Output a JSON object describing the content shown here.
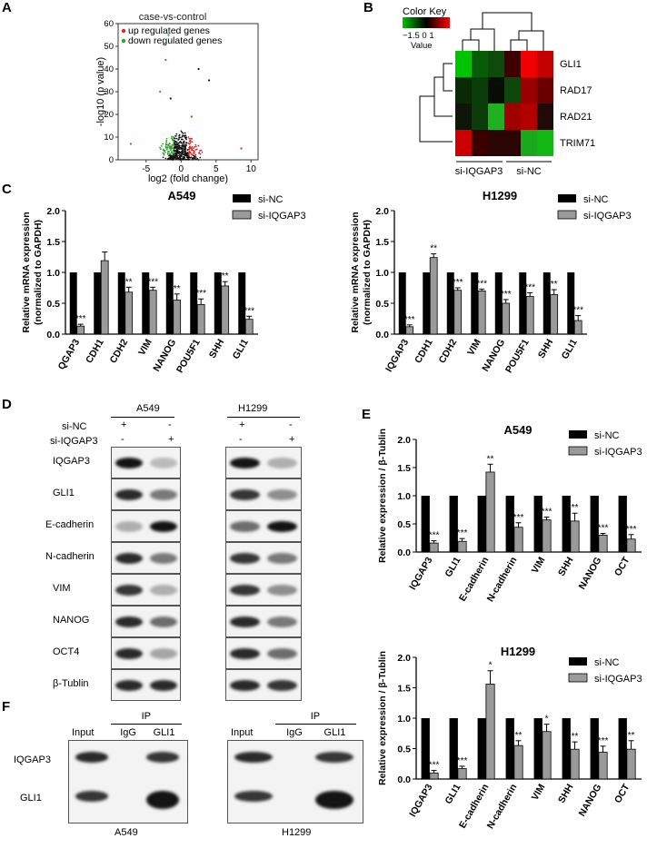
{
  "panel_labels": {
    "a": "A",
    "b": "B",
    "c": "C",
    "d": "D",
    "e": "E",
    "f": "F"
  },
  "volcano": {
    "title": "case-vs-control",
    "legend_up": "up regulated genes",
    "legend_down": "down regulated genes",
    "xlabel": "log2 (fold change)",
    "ylabel": "-log10 (p value)",
    "xticks": [
      "-5",
      "0",
      "5",
      "10"
    ],
    "yticks": [
      "0",
      "10",
      "20",
      "30",
      "40",
      "50",
      "60"
    ],
    "up_color": "#d62728",
    "down_color": "#2ca02c"
  },
  "heatmap": {
    "color_key_title": "Color Key",
    "color_key_ticks": "−1.5 0 1",
    "color_key_value": "Value",
    "genes": [
      "GLI1",
      "RAD17",
      "RAD21",
      "TRIM71"
    ],
    "groups": [
      "si-IQGAP3",
      "si-NC"
    ]
  },
  "chart_c_a549": {
    "title": "A549",
    "ylabel_line1": "Relative mRNA expression",
    "ylabel_line2": "(normalized to GAPDH)",
    "legend": [
      "si-NC",
      "si-IQGAP3"
    ],
    "yticks": [
      "0.0",
      "0.5",
      "1.0",
      "1.5",
      "2.0"
    ],
    "categories": [
      "QGAP3",
      "CDH1",
      "CDH2",
      "VIM",
      "NANOG",
      "POU5F1",
      "SHH",
      "GLI1"
    ],
    "sig": [
      "***",
      "",
      "**",
      "***",
      "**",
      "***",
      "**",
      "***"
    ]
  },
  "chart_c_h1299": {
    "title": "H1299",
    "ylabel_line1": "Relative mRNA expression",
    "ylabel_line2": "(normalized to GAPDH)",
    "legend": [
      "si-NC",
      "si-IQGAP3"
    ],
    "yticks": [
      "0.0",
      "0.5",
      "1.0",
      "1.5",
      "2.0"
    ],
    "categories": [
      "IQGAP3",
      "CDH1",
      "CDH2",
      "VIM",
      "NANOG",
      "POU5F1",
      "SHH",
      "GLI1"
    ],
    "sig": [
      "***",
      "**",
      "***",
      "***",
      "***",
      "***",
      "**",
      "***"
    ]
  },
  "chart_e_a549": {
    "title": "A549",
    "ylabel": "Relative expression / β-Tublin",
    "legend": [
      "si-NC",
      "si-IQGAP3"
    ],
    "yticks": [
      "0.0",
      "0.5",
      "1.0",
      "1.5",
      "2.0"
    ],
    "categories": [
      "IQGAP3",
      "GLI1",
      "E-cadherin",
      "N-cadherin",
      "VIM",
      "SHH",
      "NANOG",
      "OCT"
    ],
    "sig": [
      "***",
      "***",
      "**",
      "***",
      "***",
      "**",
      "***",
      "***"
    ]
  },
  "chart_e_h1299": {
    "title": "H1299",
    "ylabel": "Relative expression / β-Tublin",
    "legend": [
      "si-NC",
      "si-IQGAP3"
    ],
    "yticks": [
      "0.0",
      "0.5",
      "1.0",
      "1.5",
      "2.0"
    ],
    "categories": [
      "IQGAP3",
      "GLI1",
      "E-cadherin",
      "N-cadherin",
      "VIM",
      "SHH",
      "NANOG",
      "OCT"
    ],
    "sig": [
      "***",
      "***",
      "*",
      "**",
      "*",
      "**",
      "***",
      "**"
    ]
  },
  "chart_data": [
    {
      "type": "bar",
      "title": "A549",
      "ylabel": "Relative mRNA expression (normalized to GAPDH)",
      "ylim": [
        0,
        2.0
      ],
      "categories": [
        "QGAP3",
        "CDH1",
        "CDH2",
        "VIM",
        "NANOG",
        "POU5F1",
        "SHH",
        "GLI1"
      ],
      "series": [
        {
          "name": "si-NC",
          "values": [
            1,
            1,
            1,
            1,
            1,
            1,
            1,
            1
          ]
        },
        {
          "name": "si-IQGAP3",
          "values": [
            0.13,
            1.19,
            0.68,
            0.71,
            0.55,
            0.48,
            0.78,
            0.24
          ],
          "errors": [
            0.03,
            0.14,
            0.08,
            0.05,
            0.1,
            0.09,
            0.07,
            0.05
          ]
        }
      ]
    },
    {
      "type": "bar",
      "title": "H1299",
      "ylabel": "Relative mRNA expression (normalized to GAPDH)",
      "ylim": [
        0,
        2.0
      ],
      "categories": [
        "IQGAP3",
        "CDH1",
        "CDH2",
        "VIM",
        "NANOG",
        "POU5F1",
        "SHH",
        "GLI1"
      ],
      "series": [
        {
          "name": "si-NC",
          "values": [
            1,
            1,
            1,
            1,
            1,
            1,
            1,
            1
          ]
        },
        {
          "name": "si-IQGAP3",
          "values": [
            0.12,
            1.24,
            0.71,
            0.7,
            0.5,
            0.61,
            0.64,
            0.22
          ],
          "errors": [
            0.03,
            0.06,
            0.04,
            0.03,
            0.06,
            0.06,
            0.08,
            0.08
          ]
        }
      ]
    },
    {
      "type": "bar",
      "title": "A549",
      "ylabel": "Relative expression / β-Tublin",
      "ylim": [
        0,
        2.0
      ],
      "categories": [
        "IQGAP3",
        "GLI1",
        "E-cadherin",
        "N-cadherin",
        "VIM",
        "SHH",
        "NANOG",
        "OCT"
      ],
      "series": [
        {
          "name": "si-NC",
          "values": [
            1,
            1,
            1,
            1,
            1,
            1,
            1,
            1
          ]
        },
        {
          "name": "si-IQGAP3",
          "values": [
            0.16,
            0.19,
            1.42,
            0.44,
            0.57,
            0.55,
            0.3,
            0.23
          ],
          "errors": [
            0.04,
            0.05,
            0.14,
            0.08,
            0.05,
            0.14,
            0.03,
            0.08
          ]
        }
      ]
    },
    {
      "type": "bar",
      "title": "H1299",
      "ylabel": "Relative expression / β-Tublin",
      "ylim": [
        0,
        2.0
      ],
      "categories": [
        "IQGAP3",
        "GLI1",
        "E-cadherin",
        "N-cadherin",
        "VIM",
        "SHH",
        "NANOG",
        "OCT"
      ],
      "series": [
        {
          "name": "si-NC",
          "values": [
            1,
            1,
            1,
            1,
            1,
            1,
            1,
            1
          ]
        },
        {
          "name": "si-IQGAP3",
          "values": [
            0.1,
            0.17,
            1.56,
            0.55,
            0.78,
            0.49,
            0.44,
            0.49
          ],
          "errors": [
            0.04,
            0.04,
            0.22,
            0.08,
            0.12,
            0.12,
            0.1,
            0.14
          ]
        }
      ]
    }
  ],
  "blots_d": {
    "cell_lines": [
      "A549",
      "H1299"
    ],
    "row_si_nc": "si-NC",
    "row_si_iqgap3": "si-IQGAP3",
    "plus": "+",
    "minus": "-",
    "proteins": [
      "IQGAP3",
      "GLI1",
      "E-cadherin",
      "N-cadherin",
      "VIM",
      "NANOG",
      "OCT4",
      "β-Tublin"
    ]
  },
  "blots_f": {
    "ip_label": "IP",
    "lanes": [
      "Input",
      "IgG",
      "GLI1"
    ],
    "proteins": [
      "IQGAP3",
      "GLI1"
    ],
    "cell_lines": [
      "A549",
      "H1299"
    ]
  }
}
